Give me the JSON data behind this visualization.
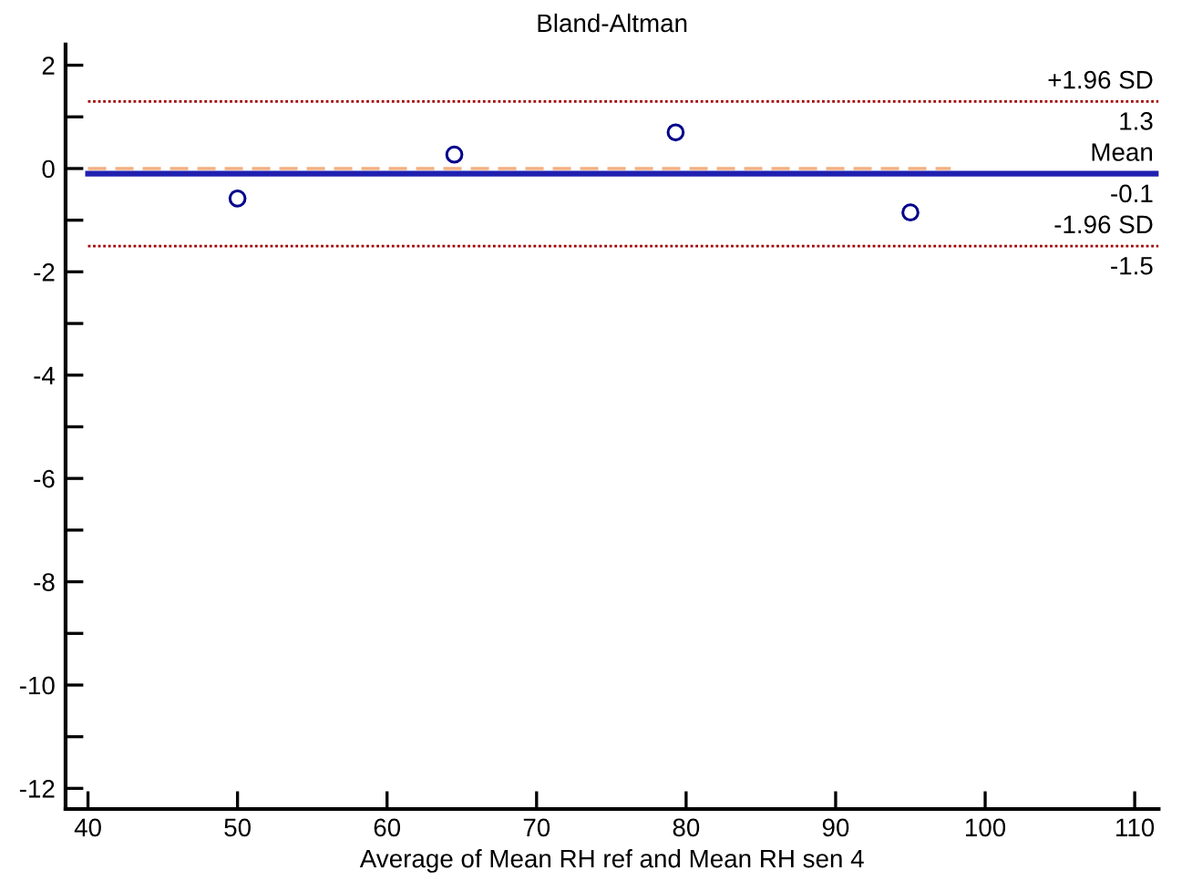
{
  "chart_data": {
    "type": "scatter",
    "title": "Bland-Altman",
    "xlabel": "Average of Mean RH ref and Mean RH sen 4",
    "xlim": [
      38.5,
      111.6
    ],
    "ylim": [
      -12.4,
      2.4
    ],
    "xticks": [
      40,
      50,
      60,
      70,
      80,
      90,
      100,
      110
    ],
    "yticks": [
      -12,
      {
        "value": -11,
        "label": null
      },
      -10,
      {
        "value": -9,
        "label": null
      },
      -8,
      {
        "value": -7,
        "label": null
      },
      -6,
      {
        "value": -5,
        "label": null
      },
      -4,
      {
        "value": -3,
        "label": null
      },
      -2,
      {
        "value": -1,
        "label": null
      },
      0,
      {
        "value": 1,
        "label": null
      },
      2
    ],
    "grid": false,
    "legend": false,
    "series": [
      {
        "marker": "circle",
        "color": "#00008b",
        "x": [
          50,
          64.5,
          79.3,
          95
        ],
        "values": [
          -0.58,
          0.27,
          0.7,
          -0.85
        ]
      },
      {
        "type": "line",
        "marker": "none",
        "color": "#f4b183",
        "line_style": "dashed",
        "x": [
          40,
          97.7
        ],
        "values": [
          0,
          0
        ]
      }
    ],
    "annotations": [
      {
        "text": "1.3",
        "y": 1.3
      },
      {
        "text": "-0.1",
        "y": -0.1
      },
      {
        "text": "-1.5",
        "y": -1.5
      }
    ],
    "ref_lines": [
      {
        "axis": "y",
        "value": 1.3,
        "label": "+1.96 SD",
        "color": "#a00000",
        "line_style": "dotted"
      },
      {
        "axis": "y",
        "value": -0.1,
        "label": "Mean",
        "color": "#2020b0",
        "line_style": "solid"
      },
      {
        "axis": "y",
        "value": -1.5,
        "label": "-1.96 SD",
        "color": "#a00000",
        "line_style": "dotted"
      }
    ]
  }
}
